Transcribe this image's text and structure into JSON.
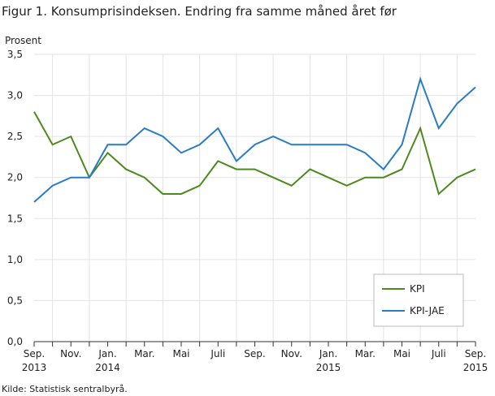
{
  "chart_data": {
    "type": "line",
    "title": "Figur 1. Konsumprisindeksen. Endring fra samme måned året før",
    "y_label": "Prosent",
    "source": "Kilde: Statistisk sentralbyrå.",
    "categories": [
      "Sep. 2013",
      null,
      "Nov.",
      null,
      "Jan. 2014",
      null,
      "Mar.",
      null,
      "Mai",
      null,
      "Juli",
      null,
      "Sep.",
      null,
      "Nov.",
      null,
      "Jan. 2015",
      null,
      "Mar.",
      null,
      "Mai",
      null,
      "Juli",
      null,
      "Sep. 2015"
    ],
    "series": [
      {
        "name": "KPI",
        "color": "#4d8a1e",
        "values": [
          2.8,
          2.4,
          2.5,
          2.0,
          2.3,
          2.1,
          2.0,
          1.8,
          1.8,
          1.9,
          2.2,
          2.1,
          2.1,
          2.0,
          1.9,
          2.1,
          2.0,
          1.9,
          2.0,
          2.0,
          2.1,
          2.6,
          1.8,
          2.0,
          2.1
        ]
      },
      {
        "name": "KPI-JAE",
        "color": "#2b7cc6",
        "values": [
          1.7,
          1.9,
          2.0,
          2.0,
          2.4,
          2.4,
          2.6,
          2.5,
          2.3,
          2.4,
          2.6,
          2.2,
          2.4,
          2.5,
          2.4,
          2.4,
          2.4,
          2.4,
          2.3,
          2.1,
          2.4,
          3.2,
          2.6,
          2.9,
          3.1
        ]
      }
    ],
    "ylim": [
      0,
      3.5
    ],
    "yticks": [
      {
        "value": 0,
        "label": "0,0"
      },
      {
        "value": 0.5,
        "label": "0,5"
      },
      {
        "value": 1,
        "label": "1,0"
      },
      {
        "value": 1.5,
        "label": "1,5"
      },
      {
        "value": 2,
        "label": "2,0"
      },
      {
        "value": 2.5,
        "label": "2,5"
      },
      {
        "value": 3,
        "label": "3,0"
      },
      {
        "value": 3.5,
        "label": "3,5"
      }
    ],
    "grid": true,
    "legend": "lower right"
  }
}
